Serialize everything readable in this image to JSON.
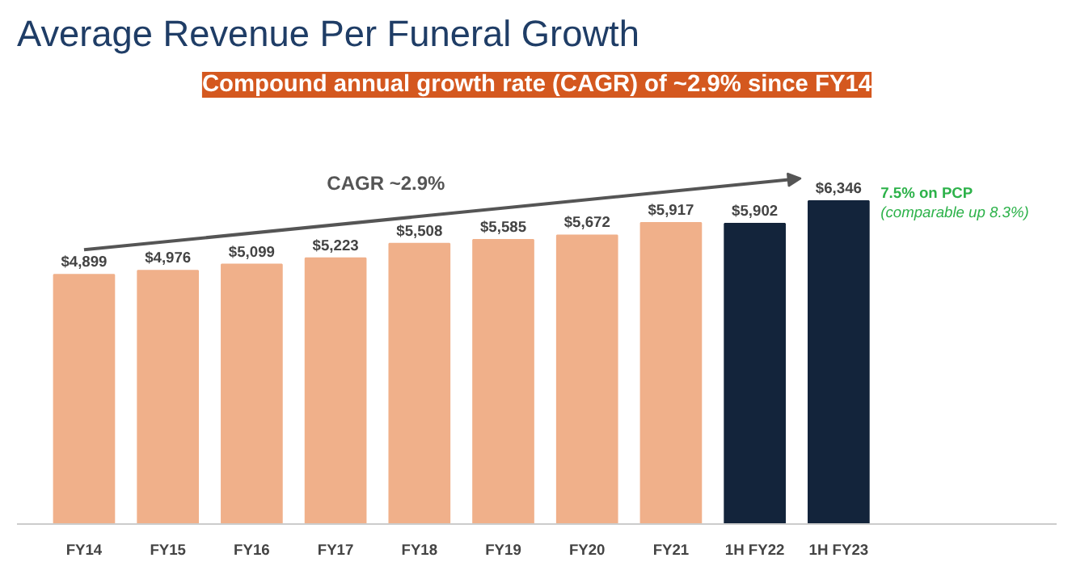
{
  "chart_data": {
    "type": "bar",
    "title": "Average Revenue Per Funeral Growth",
    "subtitle": "Compound annual growth rate (CAGR) of ~2.9% since FY14",
    "categories": [
      "FY14",
      "FY15",
      "FY16",
      "FY17",
      "FY18",
      "FY19",
      "FY20",
      "FY21",
      "1H FY22",
      "1H FY23"
    ],
    "values": [
      4899,
      4976,
      5099,
      5223,
      5508,
      5585,
      5672,
      5917,
      5902,
      6346
    ],
    "colors": [
      "#f0b08a",
      "#f0b08a",
      "#f0b08a",
      "#f0b08a",
      "#f0b08a",
      "#f0b08a",
      "#f0b08a",
      "#f0b08a",
      "#13243b",
      "#13243b"
    ],
    "value_labels": [
      "$4,899",
      "$4,976",
      "$5,099",
      "$5,223",
      "$5,508",
      "$5,585",
      "$5,672",
      "$5,917",
      "$5,902",
      "$6,346"
    ],
    "annotations": [
      "CAGR ~2.9%",
      "7.5% on PCP",
      "(comparable up 8.3%)"
    ],
    "grid": false
  }
}
